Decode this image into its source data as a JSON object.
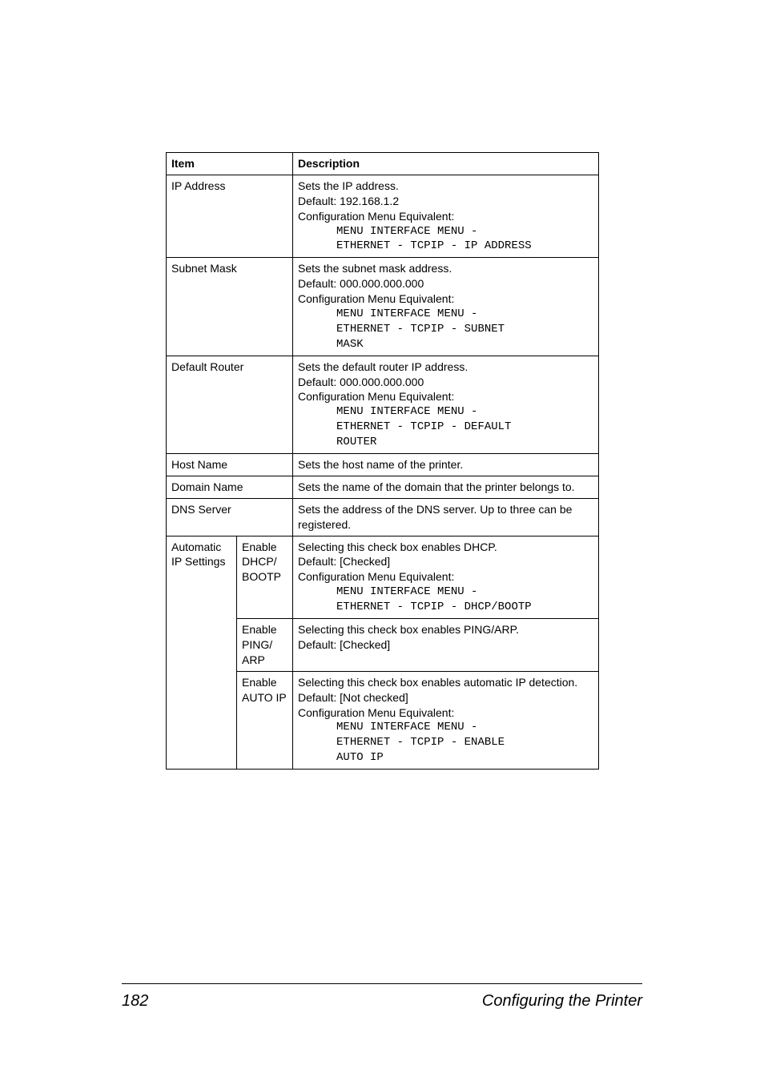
{
  "table": {
    "header": {
      "item": "Item",
      "description": "Description"
    },
    "rows": [
      {
        "item": "IP Address",
        "desc_lines": [
          "Sets the IP address.",
          "Default: 192.168.1.2",
          "Configuration Menu Equivalent:"
        ],
        "mono": "MENU INTERFACE MENU -\nETHERNET - TCPIP - IP ADDRESS"
      },
      {
        "item": "Subnet Mask",
        "desc_lines": [
          "Sets the subnet mask address.",
          "Default: 000.000.000.000",
          "Configuration Menu Equivalent:"
        ],
        "mono": "MENU INTERFACE MENU -\nETHERNET - TCPIP - SUBNET\nMASK"
      },
      {
        "item": "Default Router",
        "desc_lines": [
          "Sets the default router IP address.",
          "Default: 000.000.000.000",
          "Configuration Menu Equivalent:"
        ],
        "mono": "MENU INTERFACE MENU -\nETHERNET - TCPIP - DEFAULT\nROUTER"
      },
      {
        "item": "Host Name",
        "desc_lines": [
          "Sets the host name of the printer."
        ]
      },
      {
        "item": "Domain Name",
        "desc_lines": [
          "Sets the name of the domain that the printer belongs to."
        ]
      },
      {
        "item": "DNS Server",
        "desc_lines": [
          "Sets the address of the DNS server. Up to three can be registered."
        ]
      }
    ],
    "auto_group": {
      "col1": "Automatic IP Settings",
      "sub": [
        {
          "col2": "Enable DHCP/\nBOOTP",
          "desc_lines": [
            "Selecting this check box enables DHCP.",
            "Default: [Checked]",
            "Configuration Menu Equivalent:"
          ],
          "mono": "MENU INTERFACE MENU -\nETHERNET - TCPIP - DHCP/BOOTP"
        },
        {
          "col2": "Enable PING/\nARP",
          "desc_lines": [
            "Selecting this check box enables PING/ARP.",
            "Default: [Checked]"
          ]
        },
        {
          "col2": "Enable AUTO IP",
          "desc_lines": [
            "Selecting this check box enables automatic IP detection.",
            "Default: [Not checked]",
            "Configuration Menu Equivalent:"
          ],
          "mono": "MENU INTERFACE MENU -\nETHERNET - TCPIP - ENABLE\nAUTO IP"
        }
      ]
    }
  },
  "footer": {
    "page_number": "182",
    "section": "Configuring the Printer"
  }
}
